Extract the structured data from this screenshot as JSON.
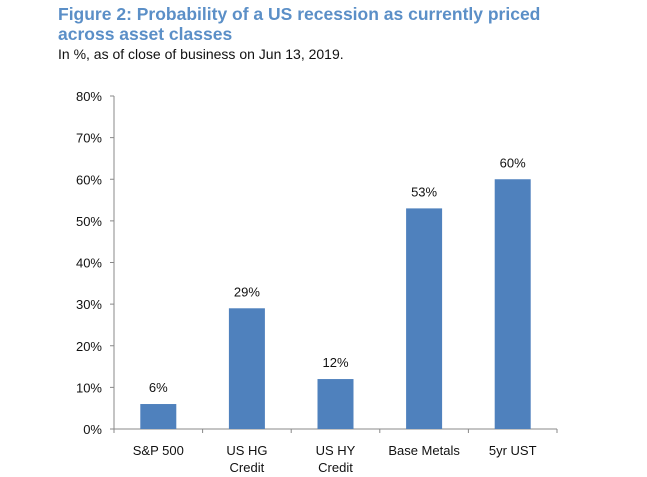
{
  "chart_data": {
    "type": "bar",
    "title": "Figure 2: Probability of a US recession as currently priced across asset classes",
    "subtitle": "In %, as of close of business on Jun 13, 2019.",
    "categories": [
      [
        "S&P 500"
      ],
      [
        "US HG",
        "Credit"
      ],
      [
        "US HY",
        "Credit"
      ],
      [
        "Base Metals"
      ],
      [
        "5yr UST"
      ]
    ],
    "values": [
      6,
      29,
      12,
      53,
      60
    ],
    "data_labels": [
      "6%",
      "29%",
      "12%",
      "53%",
      "60%"
    ],
    "ylim": [
      0,
      80
    ],
    "yticks": [
      0,
      10,
      20,
      30,
      40,
      50,
      60,
      70,
      80
    ],
    "ytick_labels": [
      "0%",
      "10%",
      "20%",
      "30%",
      "40%",
      "50%",
      "60%",
      "70%",
      "80%"
    ],
    "xlabel": "",
    "ylabel": "",
    "grid": false,
    "legend": "none",
    "colors": {
      "bar": "#4f81bd",
      "title": "#5b8fc7"
    }
  }
}
